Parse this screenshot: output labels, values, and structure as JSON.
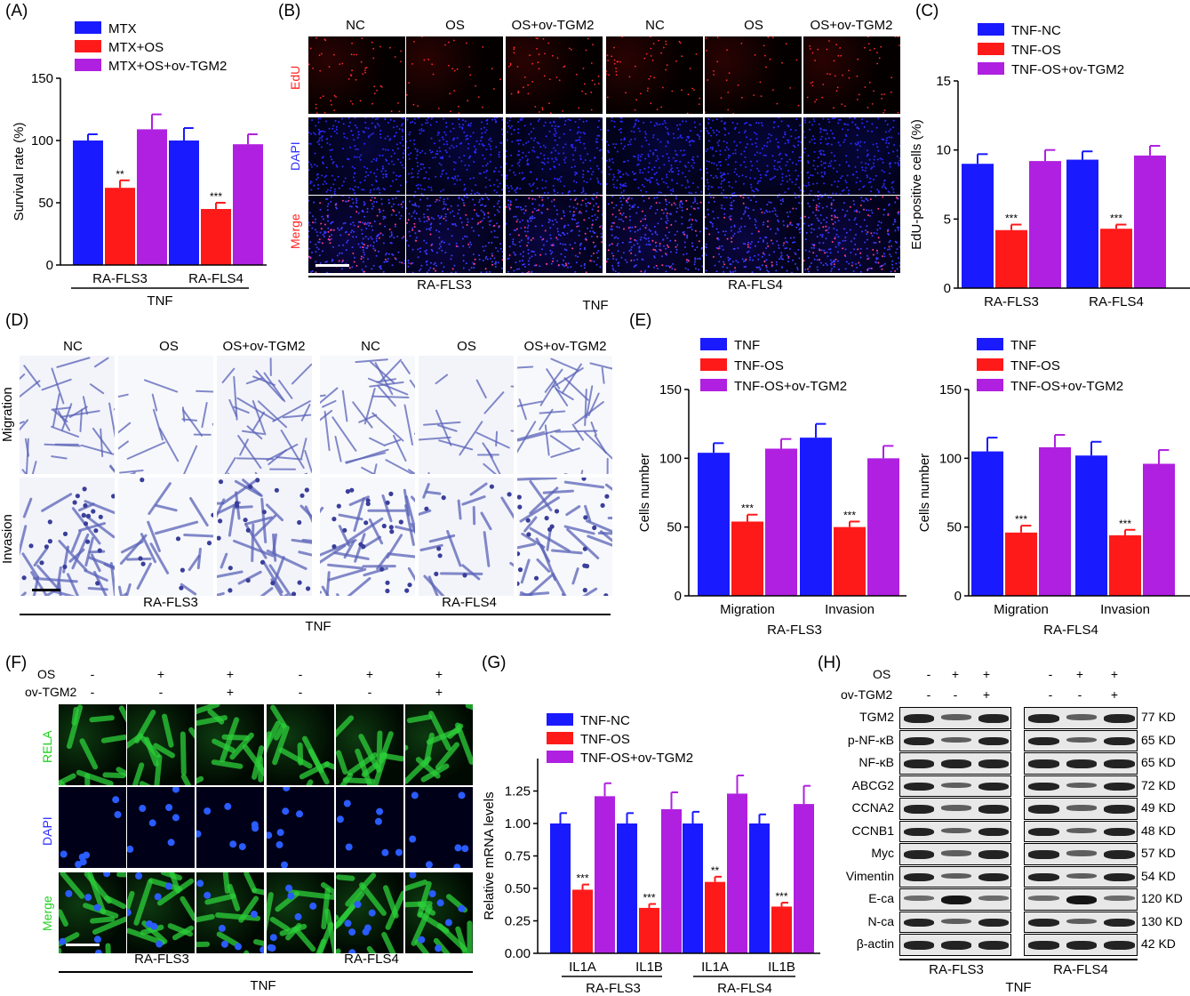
{
  "panel_labels": [
    "(A)",
    "(B)",
    "(C)",
    "(D)",
    "(E)",
    "(F)",
    "(G)",
    "(H)"
  ],
  "colors": {
    "blue": "#1a1aff",
    "red": "#ff1a1a",
    "purple": "#b020e0",
    "edu": "#ff2020",
    "dapi": "#3030ff",
    "rela": "#20d020"
  },
  "panelB": {
    "columns": [
      "NC",
      "OS",
      "OS+ov-TGM2",
      "NC",
      "OS",
      "OS+ov-TGM2"
    ],
    "rows": [
      "EdU",
      "DAPI",
      "Merge"
    ],
    "cell_lines": [
      "RA-FLS3",
      "RA-FLS4"
    ],
    "treatment": "TNF"
  },
  "panelD": {
    "columns": [
      "NC",
      "OS",
      "OS+ov-TGM2",
      "NC",
      "OS",
      "OS+ov-TGM2"
    ],
    "rows": [
      "Migration",
      "Invasion"
    ],
    "cell_lines": [
      "RA-FLS3",
      "RA-FLS4"
    ],
    "treatment": "TNF"
  },
  "panelF": {
    "os": [
      "-",
      "+",
      "+",
      "-",
      "+",
      "+"
    ],
    "ov": [
      "-",
      "-",
      "+",
      "-",
      "-",
      "+"
    ],
    "os_label": "OS",
    "ov_label": "ov-TGM2",
    "rows": [
      "RELA",
      "DAPI",
      "Merge"
    ],
    "cell_lines": [
      "RA-FLS3",
      "RA-FLS4"
    ],
    "treatment": "TNF"
  },
  "panelH": {
    "os": [
      "-",
      "+",
      "+",
      "-",
      "+",
      "+"
    ],
    "ov": [
      "-",
      "-",
      "+",
      "-",
      "-",
      "+"
    ],
    "os_label": "OS",
    "ov_label": "ov-TGM2",
    "proteins": [
      "TGM2",
      "p-NF-κB",
      "NF-κB",
      "ABCG2",
      "CCNA2",
      "CCNB1",
      "Myc",
      "Vimentin",
      "E-ca",
      "N-ca",
      "β-actin"
    ],
    "sizes": [
      "77 KD",
      "65 KD",
      "65 KD",
      "72 KD",
      "49 KD",
      "48 KD",
      "57 KD",
      "54 KD",
      "120 KD",
      "130 KD",
      "42 KD"
    ],
    "cell_lines": [
      "RA-FLS3",
      "RA-FLS4"
    ],
    "treatment": "TNF"
  },
  "chart_data": [
    {
      "id": "A",
      "type": "bar",
      "categories": [
        "RA-FLS3",
        "RA-FLS4"
      ],
      "group_label": "TNF",
      "ylabel": "Survival rate (%)",
      "ylim": [
        0,
        150
      ],
      "yticks": [
        0,
        50,
        100,
        150
      ],
      "legend": "top-left",
      "series": [
        {
          "name": "MTX",
          "values": [
            100,
            100
          ],
          "errors": [
            5,
            10
          ],
          "stars": [
            "",
            ""
          ]
        },
        {
          "name": "MTX+OS",
          "values": [
            62,
            45
          ],
          "errors": [
            6,
            5
          ],
          "stars": [
            "**",
            "***"
          ]
        },
        {
          "name": "MTX+OS+ov-TGM2",
          "values": [
            109,
            97
          ],
          "errors": [
            12,
            8
          ],
          "stars": [
            "",
            ""
          ]
        }
      ]
    },
    {
      "id": "C",
      "type": "bar",
      "categories": [
        "RA-FLS3",
        "RA-FLS4"
      ],
      "ylabel": "EdU-positive cells (%)",
      "ylim": [
        0,
        15
      ],
      "yticks": [
        0,
        5,
        10,
        15
      ],
      "legend": "top-left",
      "series": [
        {
          "name": "TNF-NC",
          "values": [
            9.0,
            9.3
          ],
          "errors": [
            0.7,
            0.6
          ],
          "stars": [
            "",
            ""
          ]
        },
        {
          "name": "TNF-OS",
          "values": [
            4.2,
            4.3
          ],
          "errors": [
            0.4,
            0.3
          ],
          "stars": [
            "***",
            "***"
          ]
        },
        {
          "name": "TNF-OS+ov-TGM2",
          "values": [
            9.2,
            9.6
          ],
          "errors": [
            0.8,
            0.7
          ],
          "stars": [
            "",
            ""
          ]
        }
      ]
    },
    {
      "id": "E1",
      "type": "bar",
      "categories": [
        "Migration",
        "Invasion"
      ],
      "group_label": "RA-FLS3",
      "ylabel": "Cells number",
      "ylim": [
        0,
        150
      ],
      "yticks": [
        0,
        50,
        100,
        150
      ],
      "legend": "top-left",
      "series": [
        {
          "name": "TNF",
          "values": [
            104,
            115
          ],
          "errors": [
            7,
            10
          ],
          "stars": [
            "",
            ""
          ]
        },
        {
          "name": "TNF-OS",
          "values": [
            54,
            50
          ],
          "errors": [
            5,
            4
          ],
          "stars": [
            "***",
            "***"
          ]
        },
        {
          "name": "TNF-OS+ov-TGM2",
          "values": [
            107,
            100
          ],
          "errors": [
            7,
            9
          ],
          "stars": [
            "",
            ""
          ]
        }
      ]
    },
    {
      "id": "E2",
      "type": "bar",
      "categories": [
        "Migration",
        "Invasion"
      ],
      "group_label": "RA-FLS4",
      "ylabel": "Cells number",
      "ylim": [
        0,
        150
      ],
      "yticks": [
        0,
        50,
        100,
        150
      ],
      "legend": "top-left",
      "series": [
        {
          "name": "TNF",
          "values": [
            105,
            102
          ],
          "errors": [
            10,
            10
          ],
          "stars": [
            "",
            ""
          ]
        },
        {
          "name": "TNF-OS",
          "values": [
            46,
            44
          ],
          "errors": [
            5,
            4
          ],
          "stars": [
            "***",
            "***"
          ]
        },
        {
          "name": "TNF-OS+ov-TGM2",
          "values": [
            108,
            96
          ],
          "errors": [
            9,
            10
          ],
          "stars": [
            "",
            ""
          ]
        }
      ]
    },
    {
      "id": "G",
      "type": "bar",
      "categories": [
        "IL1A",
        "IL1B",
        "IL1A",
        "IL1B"
      ],
      "groups": [
        "RA-FLS3",
        "RA-FLS4"
      ],
      "ylabel": "Relative mRNA levels",
      "ylim": [
        0,
        1.5
      ],
      "yticks": [
        "0.00",
        "0.25",
        "0.50",
        "0.75",
        "1.00",
        "1.25"
      ],
      "legend": "top-left",
      "series": [
        {
          "name": "TNF-NC",
          "values": [
            1.0,
            1.0,
            1.0,
            1.0
          ],
          "errors": [
            0.08,
            0.08,
            0.09,
            0.07
          ],
          "stars": [
            "",
            "",
            "",
            ""
          ]
        },
        {
          "name": "TNF-OS",
          "values": [
            0.49,
            0.35,
            0.55,
            0.36
          ],
          "errors": [
            0.04,
            0.03,
            0.04,
            0.03
          ],
          "stars": [
            "***",
            "***",
            "**",
            "***"
          ]
        },
        {
          "name": "TNF-OS+ov-TGM2",
          "values": [
            1.21,
            1.11,
            1.23,
            1.15
          ],
          "errors": [
            0.1,
            0.13,
            0.14,
            0.14
          ],
          "stars": [
            "",
            "",
            "",
            ""
          ]
        }
      ]
    }
  ]
}
